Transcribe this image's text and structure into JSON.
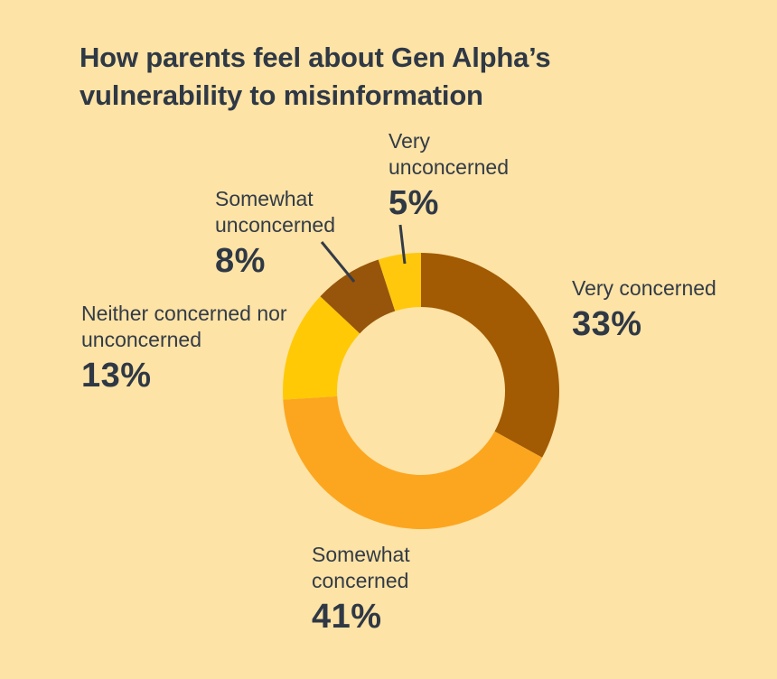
{
  "title": "How parents feel about Gen Alpha’s vulnerability to misinformation",
  "background_color": "#FDE3A5",
  "text_color": "#2F3845",
  "chart_data": {
    "type": "pie",
    "subtype": "donut",
    "title": "How parents feel about Gen Alpha’s vulnerability to misinformation",
    "categories": [
      "Very concerned",
      "Somewhat concerned",
      "Neither concerned nor unconcerned",
      "Somewhat unconcerned",
      "Very unconcerned"
    ],
    "values": [
      33,
      41,
      13,
      8,
      5
    ],
    "value_labels": [
      "33%",
      "41%",
      "13%",
      "8%",
      "5%"
    ],
    "unit": "%",
    "colors": [
      "#A25B03",
      "#FCA61F",
      "#FFC905",
      "#96550B",
      "#FFC80D"
    ],
    "start_angle_deg": 0,
    "direction": "clockwise",
    "inner_radius_ratio": 0.61,
    "legend_position": "labels-around-chart",
    "leader_line_color": "#333B47"
  }
}
